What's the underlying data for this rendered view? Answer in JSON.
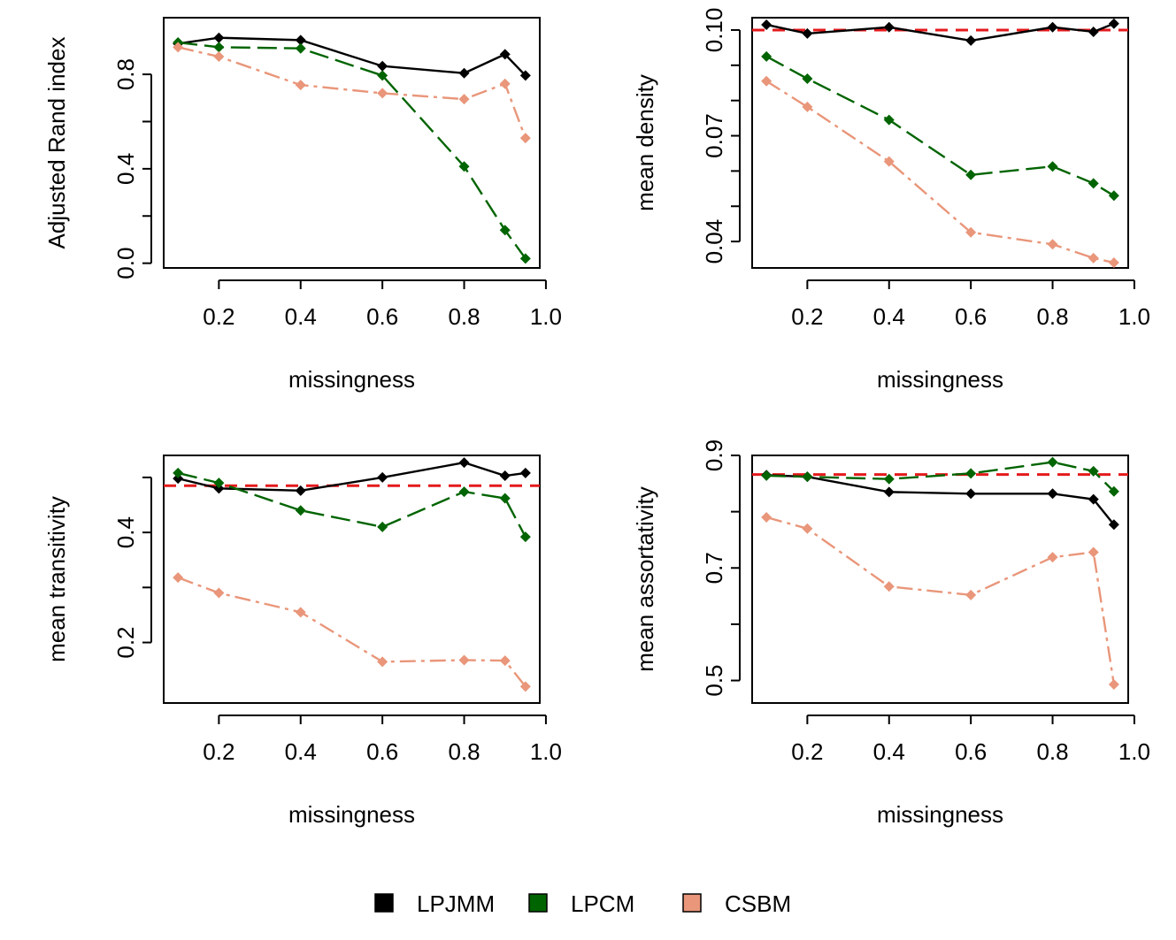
{
  "chart_data": [
    {
      "type": "line",
      "xlabel": "missingness",
      "ylabel": "Adjusted Rand index",
      "xlim": [
        0.065,
        0.985
      ],
      "ylim": [
        -0.02,
        1.04
      ],
      "xticks": [
        "0.2",
        "0.4",
        "0.6",
        "0.8",
        "1.0"
      ],
      "yticks": [
        "0.0",
        "0.4",
        "0.8"
      ],
      "ytick_values": [
        0.0,
        0.2,
        0.4,
        0.6,
        0.8
      ],
      "x": [
        0.1,
        0.2,
        0.4,
        0.6,
        0.8,
        0.9,
        0.95
      ],
      "reference": null,
      "series": [
        {
          "name": "LPJMM",
          "values": [
            0.93,
            0.955,
            0.945,
            0.835,
            0.805,
            0.885,
            0.795
          ]
        },
        {
          "name": "LPCM",
          "values": [
            0.935,
            0.915,
            0.91,
            0.795,
            0.41,
            0.14,
            0.02
          ]
        },
        {
          "name": "CSBM",
          "values": [
            0.915,
            0.875,
            0.755,
            0.72,
            0.695,
            0.76,
            0.53
          ]
        }
      ]
    },
    {
      "type": "line",
      "xlabel": "missingness",
      "ylabel": "mean density",
      "xlim": [
        0.065,
        0.985
      ],
      "ylim": [
        0.0325,
        0.1035
      ],
      "xticks": [
        "0.2",
        "0.4",
        "0.6",
        "0.8",
        "1.0"
      ],
      "yticks": [
        "0.04",
        "0.07",
        "0.10"
      ],
      "ytick_values": [
        0.04,
        0.05,
        0.06,
        0.07,
        0.08,
        0.09,
        0.1
      ],
      "x": [
        0.1,
        0.2,
        0.4,
        0.6,
        0.8,
        0.9,
        0.95
      ],
      "reference": 0.1,
      "series": [
        {
          "name": "LPJMM",
          "values": [
            0.1015,
            0.099,
            0.1008,
            0.097,
            0.1008,
            0.0995,
            0.1018
          ]
        },
        {
          "name": "LPCM",
          "values": [
            0.0925,
            0.0862,
            0.0745,
            0.0589,
            0.0613,
            0.0565,
            0.053
          ]
        },
        {
          "name": "CSBM",
          "values": [
            0.0855,
            0.0782,
            0.0627,
            0.0426,
            0.0392,
            0.0353,
            0.034
          ]
        }
      ]
    },
    {
      "type": "line",
      "xlabel": "missingness",
      "ylabel": "mean transitivity",
      "xlim": [
        0.065,
        0.985
      ],
      "ylim": [
        0.09,
        0.54
      ],
      "xticks": [
        "0.2",
        "0.4",
        "0.6",
        "0.8",
        "1.0"
      ],
      "yticks": [
        "0.2",
        "0.4"
      ],
      "ytick_values": [
        0.2,
        0.3,
        0.4,
        0.5
      ],
      "x": [
        0.1,
        0.2,
        0.4,
        0.6,
        0.8,
        0.9,
        0.95
      ],
      "reference": 0.485,
      "series": [
        {
          "name": "LPJMM",
          "values": [
            0.498,
            0.48,
            0.476,
            0.5,
            0.527,
            0.503,
            0.508
          ]
        },
        {
          "name": "LPCM",
          "values": [
            0.508,
            0.49,
            0.44,
            0.41,
            0.474,
            0.462,
            0.392
          ]
        },
        {
          "name": "CSBM",
          "values": [
            0.318,
            0.29,
            0.255,
            0.165,
            0.168,
            0.167,
            0.12
          ]
        }
      ]
    },
    {
      "type": "line",
      "xlabel": "missingness",
      "ylabel": "mean assortativity",
      "xlim": [
        0.065,
        0.985
      ],
      "ylim": [
        0.46,
        0.9
      ],
      "xticks": [
        "0.2",
        "0.4",
        "0.6",
        "0.8",
        "1.0"
      ],
      "yticks": [
        "0.5",
        "0.7",
        "0.9"
      ],
      "ytick_values": [
        0.5,
        0.6,
        0.7,
        0.8,
        0.9
      ],
      "x": [
        0.1,
        0.2,
        0.4,
        0.6,
        0.8,
        0.9,
        0.95
      ],
      "reference": 0.866,
      "series": [
        {
          "name": "LPJMM",
          "values": [
            0.865,
            0.862,
            0.835,
            0.832,
            0.832,
            0.822,
            0.777
          ]
        },
        {
          "name": "LPCM",
          "values": [
            0.864,
            0.862,
            0.858,
            0.868,
            0.888,
            0.872,
            0.836
          ]
        },
        {
          "name": "CSBM",
          "values": [
            0.79,
            0.77,
            0.667,
            0.652,
            0.719,
            0.728,
            0.493
          ]
        }
      ]
    }
  ],
  "legend": {
    "items": [
      {
        "label": "LPJMM",
        "color": "#000000"
      },
      {
        "label": "LPCM",
        "color": "#006400"
      },
      {
        "label": "CSBM",
        "color": "#E9967A"
      }
    ]
  },
  "colors": {
    "reference_line": "#E41A1C"
  }
}
